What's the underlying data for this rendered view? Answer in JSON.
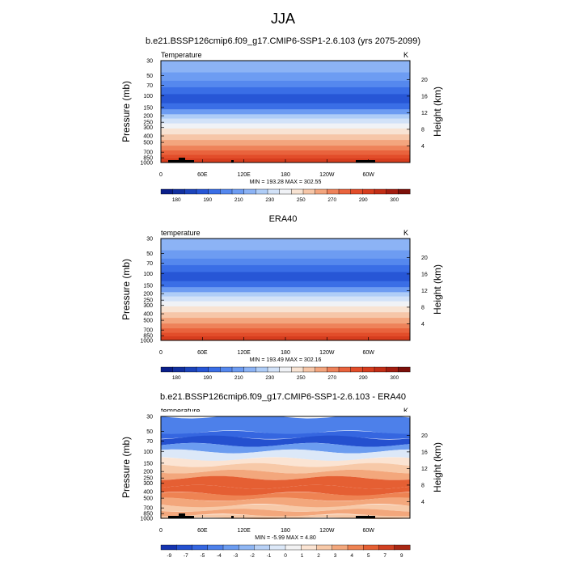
{
  "figure_title": "JJA",
  "palette_note_colors": {
    "levels_full": [
      "#0a1f8a",
      "#12309f",
      "#1c44bb",
      "#2756d6",
      "#3a6ee6",
      "#5588ee",
      "#6d9cf2",
      "#8cb3f5",
      "#afcdf7",
      "#d2e2f8",
      "#f0f2f6",
      "#f8e3d3",
      "#f6c6a8",
      "#f3a57e",
      "#ee825a",
      "#e9633d",
      "#e24d2a",
      "#d63d1e",
      "#c22e16",
      "#a31d10",
      "#7c100a"
    ],
    "levels_diff": [
      "#1534b0",
      "#2450cf",
      "#3566e0",
      "#4d80ea",
      "#6b9cf0",
      "#8fb6f3",
      "#b8d1f6",
      "#dce8f8",
      "#f2f2f3",
      "#fbe4d3",
      "#f7c9a8",
      "#f3a77c",
      "#ee8353",
      "#e55f33",
      "#d14122",
      "#a92814"
    ]
  },
  "chart_data": [
    {
      "type": "heatmap",
      "title": "b.e21.BSSP126cmip6.f09_g17.CMIP6-SSP1-2.6.103 (yrs 2075-2099)",
      "left_label": "Temperature",
      "right_label": "K",
      "ylabel": "Pressure (mb)",
      "ylabel_right": "Height (km)",
      "y_ticks": [
        "30",
        "50",
        "70",
        "100",
        "150",
        "200",
        "250",
        "300",
        "400",
        "500",
        "700",
        "850",
        "1000"
      ],
      "y_ticks_right": [
        "20",
        "16",
        "12",
        "8",
        "4"
      ],
      "x_ticks": [
        "0",
        "60E",
        "120E",
        "180",
        "120W",
        "60W"
      ],
      "stats": "MIN = 193.28  MAX = 302.55",
      "colorbar_labels": [
        "180",
        "190",
        "210",
        "230",
        "250",
        "270",
        "290",
        "300"
      ],
      "min": 193.28,
      "max": 302.55
    },
    {
      "type": "heatmap",
      "title": "ERA40",
      "left_label": "temperature",
      "right_label": "K",
      "ylabel": "Pressure (mb)",
      "ylabel_right": "Height (km)",
      "y_ticks": [
        "30",
        "50",
        "70",
        "100",
        "150",
        "200",
        "250",
        "300",
        "400",
        "500",
        "700",
        "850",
        "1000"
      ],
      "y_ticks_right": [
        "20",
        "16",
        "12",
        "8",
        "4"
      ],
      "x_ticks": [
        "0",
        "60E",
        "120E",
        "180",
        "120W",
        "60W"
      ],
      "stats": "MIN = 193.49  MAX = 302.16",
      "colorbar_labels": [
        "180",
        "190",
        "210",
        "230",
        "250",
        "270",
        "290",
        "300"
      ],
      "min": 193.49,
      "max": 302.16
    },
    {
      "type": "heatmap",
      "title": "b.e21.BSSP126cmip6.f09_g17.CMIP6-SSP1-2.6.103 - ERA40",
      "left_label": "temperature",
      "right_label": "K",
      "ylabel": "Pressure (mb)",
      "ylabel_right": "Height (km)",
      "y_ticks": [
        "30",
        "50",
        "70",
        "100",
        "150",
        "200",
        "250",
        "300",
        "400",
        "500",
        "700",
        "850",
        "1000"
      ],
      "y_ticks_right": [
        "20",
        "16",
        "12",
        "8",
        "4"
      ],
      "x_ticks": [
        "0",
        "60E",
        "120E",
        "180",
        "120W",
        "60W"
      ],
      "stats": "MIN =  -5.99  MAX =   4.80",
      "colorbar_labels": [
        "-9",
        "-7",
        "-5",
        "-4",
        "-3",
        "-2",
        "-1",
        "0",
        "1",
        "2",
        "3",
        "4",
        "5",
        "7",
        "9"
      ],
      "min": -5.99,
      "max": 4.8
    }
  ]
}
